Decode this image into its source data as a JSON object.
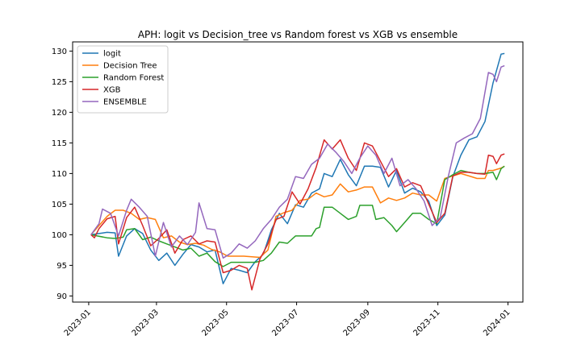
{
  "chart_data": {
    "type": "line",
    "title": "APH: logit vs Decision_tree vs Random forest vs XGB vs ensemble",
    "xlabel": "",
    "ylabel": "",
    "xlim": [
      "2022-12-18",
      "2024-01-14"
    ],
    "ylim": [
      89,
      131.5
    ],
    "x_ticks": [
      "2023-01",
      "2023-03",
      "2023-05",
      "2023-07",
      "2023-09",
      "2023-11",
      "2024-01"
    ],
    "y_ticks": [
      90,
      95,
      100,
      105,
      110,
      115,
      120,
      125,
      130
    ],
    "legend_position": "top-left",
    "grid": false,
    "series": [
      {
        "name": "logit",
        "color": "#1f77b4",
        "points": [
          [
            "2023-01-03",
            100
          ],
          [
            "2023-01-10",
            100.2
          ],
          [
            "2023-01-17",
            100.4
          ],
          [
            "2023-01-24",
            100.3
          ],
          [
            "2023-01-27",
            96.5
          ],
          [
            "2023-02-03",
            99.8
          ],
          [
            "2023-02-10",
            101.0
          ],
          [
            "2023-02-17",
            100.2
          ],
          [
            "2023-02-24",
            97.5
          ],
          [
            "2023-03-03",
            95.8
          ],
          [
            "2023-03-10",
            97.0
          ],
          [
            "2023-03-17",
            95.0
          ],
          [
            "2023-03-24",
            96.8
          ],
          [
            "2023-03-31",
            98.4
          ],
          [
            "2023-04-07",
            98.0
          ],
          [
            "2023-04-14",
            97.2
          ],
          [
            "2023-04-21",
            97.5
          ],
          [
            "2023-04-28",
            92.0
          ],
          [
            "2023-05-05",
            94.5
          ],
          [
            "2023-05-12",
            94.2
          ],
          [
            "2023-05-19",
            93.8
          ],
          [
            "2023-05-26",
            95.6
          ],
          [
            "2023-06-02",
            96.8
          ],
          [
            "2023-06-09",
            100.8
          ],
          [
            "2023-06-16",
            103.5
          ],
          [
            "2023-06-23",
            101.8
          ],
          [
            "2023-06-30",
            104.9
          ],
          [
            "2023-07-07",
            104.5
          ],
          [
            "2023-07-14",
            106.8
          ],
          [
            "2023-07-21",
            107.5
          ],
          [
            "2023-07-25",
            110.0
          ],
          [
            "2023-08-01",
            109.5
          ],
          [
            "2023-08-08",
            112.3
          ],
          [
            "2023-08-15",
            109.8
          ],
          [
            "2023-08-22",
            108.0
          ],
          [
            "2023-08-29",
            111.2
          ],
          [
            "2023-09-05",
            111.2
          ],
          [
            "2023-09-12",
            111.0
          ],
          [
            "2023-09-19",
            107.8
          ],
          [
            "2023-09-26",
            110.5
          ],
          [
            "2023-10-03",
            106.8
          ],
          [
            "2023-10-10",
            107.6
          ],
          [
            "2023-10-17",
            107.0
          ],
          [
            "2023-10-24",
            105.5
          ],
          [
            "2023-10-31",
            101.5
          ],
          [
            "2023-11-07",
            103.2
          ],
          [
            "2023-11-14",
            109.5
          ],
          [
            "2023-11-21",
            113.0
          ],
          [
            "2023-11-28",
            115.5
          ],
          [
            "2023-12-05",
            116.0
          ],
          [
            "2023-12-12",
            118.5
          ],
          [
            "2023-12-19",
            124.8
          ],
          [
            "2023-12-26",
            129.5
          ],
          [
            "2023-12-29",
            129.6
          ]
        ]
      },
      {
        "name": "Decision Tree",
        "color": "#ff7f0e",
        "points": [
          [
            "2023-01-03",
            100
          ],
          [
            "2023-01-10",
            101.5
          ],
          [
            "2023-01-17",
            103.0
          ],
          [
            "2023-01-24",
            104.0
          ],
          [
            "2023-01-31",
            104.0
          ],
          [
            "2023-02-07",
            103.5
          ],
          [
            "2023-02-14",
            102.5
          ],
          [
            "2023-02-21",
            102.8
          ],
          [
            "2023-02-28",
            102.5
          ],
          [
            "2023-03-07",
            99.5
          ],
          [
            "2023-03-14",
            99.8
          ],
          [
            "2023-03-21",
            98.8
          ],
          [
            "2023-03-28",
            98.4
          ],
          [
            "2023-04-04",
            98.6
          ],
          [
            "2023-04-11",
            98.3
          ],
          [
            "2023-04-18",
            97.6
          ],
          [
            "2023-04-25",
            97.2
          ],
          [
            "2023-05-02",
            96.5
          ],
          [
            "2023-05-16",
            96.5
          ],
          [
            "2023-05-30",
            96.3
          ],
          [
            "2023-06-06",
            97.5
          ],
          [
            "2023-06-13",
            103.0
          ],
          [
            "2023-06-20",
            103.6
          ],
          [
            "2023-06-27",
            104.0
          ],
          [
            "2023-07-04",
            105.6
          ],
          [
            "2023-07-11",
            105.8
          ],
          [
            "2023-07-18",
            106.8
          ],
          [
            "2023-07-25",
            106.2
          ],
          [
            "2023-08-01",
            106.5
          ],
          [
            "2023-08-08",
            108.3
          ],
          [
            "2023-08-15",
            107.0
          ],
          [
            "2023-08-22",
            107.3
          ],
          [
            "2023-08-29",
            107.8
          ],
          [
            "2023-09-05",
            107.8
          ],
          [
            "2023-09-12",
            105.2
          ],
          [
            "2023-09-19",
            106.0
          ],
          [
            "2023-09-26",
            105.6
          ],
          [
            "2023-10-03",
            106.0
          ],
          [
            "2023-10-10",
            106.8
          ],
          [
            "2023-10-17",
            106.5
          ],
          [
            "2023-10-24",
            106.5
          ],
          [
            "2023-10-31",
            105.5
          ],
          [
            "2023-11-07",
            109.2
          ],
          [
            "2023-11-14",
            109.6
          ],
          [
            "2023-11-21",
            110.0
          ],
          [
            "2023-11-28",
            109.6
          ],
          [
            "2023-12-05",
            109.2
          ],
          [
            "2023-12-12",
            109.2
          ],
          [
            "2023-12-15",
            110.5
          ],
          [
            "2023-12-19",
            110.5
          ],
          [
            "2023-12-26",
            110.9
          ],
          [
            "2023-12-29",
            111.2
          ]
        ]
      },
      {
        "name": "Random Forest",
        "color": "#2ca02c",
        "points": [
          [
            "2023-01-03",
            100
          ],
          [
            "2023-01-17",
            99.5
          ],
          [
            "2023-01-24",
            99.4
          ],
          [
            "2023-01-31",
            99.6
          ],
          [
            "2023-02-03",
            100.8
          ],
          [
            "2023-02-10",
            101.0
          ],
          [
            "2023-02-17",
            99.2
          ],
          [
            "2023-02-24",
            99.6
          ],
          [
            "2023-03-03",
            99.0
          ],
          [
            "2023-03-10",
            98.5
          ],
          [
            "2023-03-17",
            98.0
          ],
          [
            "2023-03-24",
            97.5
          ],
          [
            "2023-03-31",
            97.8
          ],
          [
            "2023-04-07",
            96.5
          ],
          [
            "2023-04-14",
            97.0
          ],
          [
            "2023-04-21",
            95.6
          ],
          [
            "2023-04-28",
            94.8
          ],
          [
            "2023-05-05",
            95.5
          ],
          [
            "2023-05-12",
            95.5
          ],
          [
            "2023-05-19",
            95.5
          ],
          [
            "2023-05-26",
            95.5
          ],
          [
            "2023-06-02",
            95.8
          ],
          [
            "2023-06-09",
            97.0
          ],
          [
            "2023-06-16",
            98.8
          ],
          [
            "2023-06-23",
            98.6
          ],
          [
            "2023-06-30",
            99.8
          ],
          [
            "2023-07-14",
            99.8
          ],
          [
            "2023-07-18",
            101.0
          ],
          [
            "2023-07-21",
            101.2
          ],
          [
            "2023-07-25",
            104.5
          ],
          [
            "2023-08-01",
            104.5
          ],
          [
            "2023-08-08",
            103.5
          ],
          [
            "2023-08-15",
            102.5
          ],
          [
            "2023-08-22",
            103.0
          ],
          [
            "2023-08-25",
            104.8
          ],
          [
            "2023-09-05",
            104.8
          ],
          [
            "2023-09-08",
            102.5
          ],
          [
            "2023-09-15",
            102.8
          ],
          [
            "2023-09-22",
            101.5
          ],
          [
            "2023-09-26",
            100.5
          ],
          [
            "2023-10-03",
            102.0
          ],
          [
            "2023-10-10",
            103.5
          ],
          [
            "2023-10-17",
            103.5
          ],
          [
            "2023-10-24",
            102.5
          ],
          [
            "2023-10-31",
            101.8
          ],
          [
            "2023-11-07",
            109.0
          ],
          [
            "2023-11-14",
            109.8
          ],
          [
            "2023-11-21",
            110.5
          ],
          [
            "2023-11-28",
            110.2
          ],
          [
            "2023-12-05",
            110.0
          ],
          [
            "2023-12-12",
            110.0
          ],
          [
            "2023-12-19",
            110.2
          ],
          [
            "2023-12-22",
            109.0
          ],
          [
            "2023-12-26",
            110.8
          ],
          [
            "2023-12-29",
            111.2
          ]
        ]
      },
      {
        "name": "XGB",
        "color": "#d62728",
        "points": [
          [
            "2023-01-03",
            100
          ],
          [
            "2023-01-06",
            99.5
          ],
          [
            "2023-01-10",
            101.0
          ],
          [
            "2023-01-17",
            102.6
          ],
          [
            "2023-01-24",
            103.0
          ],
          [
            "2023-01-27",
            98.5
          ],
          [
            "2023-02-03",
            102.8
          ],
          [
            "2023-02-10",
            104.5
          ],
          [
            "2023-02-17",
            101.5
          ],
          [
            "2023-02-24",
            98.2
          ],
          [
            "2023-03-03",
            99.4
          ],
          [
            "2023-03-10",
            100.8
          ],
          [
            "2023-03-17",
            97.0
          ],
          [
            "2023-03-24",
            99.2
          ],
          [
            "2023-03-31",
            99.8
          ],
          [
            "2023-04-07",
            98.5
          ],
          [
            "2023-04-14",
            99.0
          ],
          [
            "2023-04-21",
            98.8
          ],
          [
            "2023-04-28",
            93.8
          ],
          [
            "2023-05-05",
            94.2
          ],
          [
            "2023-05-12",
            95.0
          ],
          [
            "2023-05-19",
            94.5
          ],
          [
            "2023-05-23",
            91.0
          ],
          [
            "2023-05-30",
            96.0
          ],
          [
            "2023-06-06",
            98.5
          ],
          [
            "2023-06-13",
            102.5
          ],
          [
            "2023-06-20",
            103.0
          ],
          [
            "2023-06-27",
            107.0
          ],
          [
            "2023-07-04",
            105.0
          ],
          [
            "2023-07-11",
            107.5
          ],
          [
            "2023-07-18",
            111.0
          ],
          [
            "2023-07-25",
            115.5
          ],
          [
            "2023-08-01",
            114.0
          ],
          [
            "2023-08-08",
            115.5
          ],
          [
            "2023-08-15",
            112.5
          ],
          [
            "2023-08-22",
            110.5
          ],
          [
            "2023-08-29",
            115.0
          ],
          [
            "2023-09-05",
            114.5
          ],
          [
            "2023-09-12",
            112.0
          ],
          [
            "2023-09-19",
            109.5
          ],
          [
            "2023-09-26",
            110.8
          ],
          [
            "2023-10-03",
            107.8
          ],
          [
            "2023-10-10",
            108.5
          ],
          [
            "2023-10-17",
            108.0
          ],
          [
            "2023-10-24",
            105.0
          ],
          [
            "2023-10-31",
            102.0
          ],
          [
            "2023-11-07",
            103.5
          ],
          [
            "2023-11-14",
            109.6
          ],
          [
            "2023-11-21",
            110.2
          ],
          [
            "2023-11-28",
            110.2
          ],
          [
            "2023-12-05",
            110.0
          ],
          [
            "2023-12-12",
            109.9
          ],
          [
            "2023-12-15",
            113.0
          ],
          [
            "2023-12-19",
            112.8
          ],
          [
            "2023-12-22",
            111.6
          ],
          [
            "2023-12-26",
            113.0
          ],
          [
            "2023-12-29",
            113.2
          ]
        ]
      },
      {
        "name": "ENSEMBLE",
        "color": "#9467bd",
        "points": [
          [
            "2023-01-03",
            100
          ],
          [
            "2023-01-10",
            101.8
          ],
          [
            "2023-01-13",
            104.2
          ],
          [
            "2023-01-20",
            103.5
          ],
          [
            "2023-01-27",
            99.8
          ],
          [
            "2023-02-03",
            104.0
          ],
          [
            "2023-02-07",
            105.8
          ],
          [
            "2023-02-14",
            104.5
          ],
          [
            "2023-02-21",
            103.0
          ],
          [
            "2023-02-28",
            96.5
          ],
          [
            "2023-03-07",
            102.0
          ],
          [
            "2023-03-14",
            98.0
          ],
          [
            "2023-03-21",
            99.8
          ],
          [
            "2023-03-28",
            98.4
          ],
          [
            "2023-04-04",
            100.4
          ],
          [
            "2023-04-07",
            105.2
          ],
          [
            "2023-04-14",
            101.0
          ],
          [
            "2023-04-21",
            100.8
          ],
          [
            "2023-04-28",
            96.2
          ],
          [
            "2023-05-05",
            97.0
          ],
          [
            "2023-05-12",
            98.5
          ],
          [
            "2023-05-19",
            97.8
          ],
          [
            "2023-05-26",
            99.0
          ],
          [
            "2023-06-02",
            101.0
          ],
          [
            "2023-06-09",
            102.5
          ],
          [
            "2023-06-16",
            104.5
          ],
          [
            "2023-06-23",
            105.8
          ],
          [
            "2023-06-30",
            109.5
          ],
          [
            "2023-07-07",
            109.2
          ],
          [
            "2023-07-14",
            111.5
          ],
          [
            "2023-07-21",
            112.5
          ],
          [
            "2023-07-28",
            114.8
          ],
          [
            "2023-08-04",
            113.5
          ],
          [
            "2023-08-11",
            112.0
          ],
          [
            "2023-08-18",
            110.0
          ],
          [
            "2023-08-25",
            112.5
          ],
          [
            "2023-09-01",
            114.5
          ],
          [
            "2023-09-08",
            113.0
          ],
          [
            "2023-09-15",
            110.0
          ],
          [
            "2023-09-22",
            112.5
          ],
          [
            "2023-09-29",
            108.0
          ],
          [
            "2023-10-06",
            109.0
          ],
          [
            "2023-10-13",
            107.5
          ],
          [
            "2023-10-20",
            105.5
          ],
          [
            "2023-10-27",
            101.5
          ],
          [
            "2023-11-03",
            102.8
          ],
          [
            "2023-11-10",
            109.5
          ],
          [
            "2023-11-17",
            115.0
          ],
          [
            "2023-11-24",
            115.8
          ],
          [
            "2023-12-01",
            116.5
          ],
          [
            "2023-12-08",
            119.0
          ],
          [
            "2023-12-15",
            126.5
          ],
          [
            "2023-12-19",
            126.2
          ],
          [
            "2023-12-22",
            125.0
          ],
          [
            "2023-12-26",
            127.4
          ],
          [
            "2023-12-29",
            127.6
          ]
        ]
      }
    ]
  }
}
